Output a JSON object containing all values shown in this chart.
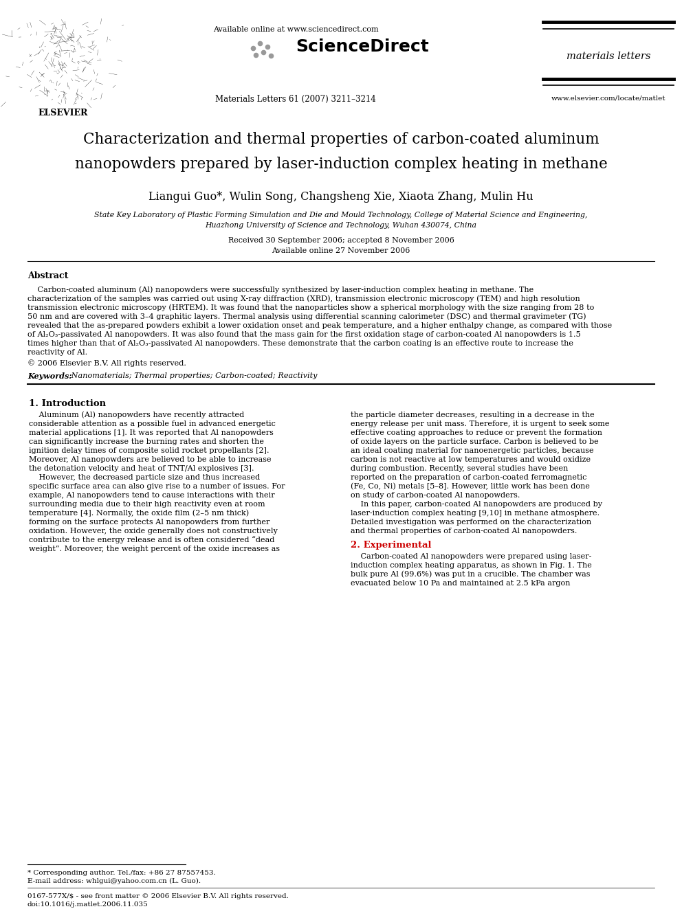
{
  "bg_color": "#ffffff",
  "header": {
    "available_online": "Available online at www.sciencedirect.com",
    "journal_name": "materials letters",
    "journal_ref": "Materials Letters 61 (2007) 3211–3214",
    "website": "www.elsevier.com/locate/matlet"
  },
  "title_line1": "Characterization and thermal properties of carbon-coated aluminum",
  "title_line2": "nanopowders prepared by laser-induction complex heating in methane",
  "authors": "Liangui Guo*, Wulin Song, Changsheng Xie, Xiaota Zhang, Mulin Hu",
  "affiliation_line1": "State Key Laboratory of Plastic Forming Simulation and Die and Mould Technology, College of Material Science and Engineering,",
  "affiliation_line2": "Huazhong University of Science and Technology, Wuhan 430074, China",
  "received": "Received 30 September 2006; accepted 8 November 2006",
  "available": "Available online 27 November 2006",
  "abstract_title": "Abstract",
  "abstract_lines": [
    "    Carbon-coated aluminum (Al) nanopowders were successfully synthesized by laser-induction complex heating in methane. The",
    "characterization of the samples was carried out using X-ray diffraction (XRD), transmission electronic microscopy (TEM) and high resolution",
    "transmission electronic microscopy (HRTEM). It was found that the nanoparticles show a spherical morphology with the size ranging from 28 to",
    "50 nm and are covered with 3–4 graphitic layers. Thermal analysis using differential scanning calorimeter (DSC) and thermal gravimeter (TG)",
    "revealed that the as-prepared powders exhibit a lower oxidation onset and peak temperature, and a higher enthalpy change, as compared with those",
    "of Al₂O₃-passivated Al nanopowders. It was also found that the mass gain for the first oxidation stage of carbon-coated Al nanopowders is 1.5",
    "times higher than that of Al₂O₃-passivated Al nanopowders. These demonstrate that the carbon coating is an effective route to increase the",
    "reactivity of Al."
  ],
  "copyright": "© 2006 Elsevier B.V. All rights reserved.",
  "keywords_label": "Keywords:",
  "keywords": "Nanomaterials; Thermal properties; Carbon-coated; Reactivity",
  "section1_title": "1. Introduction",
  "col1_lines": [
    "    Aluminum (Al) nanopowders have recently attracted",
    "considerable attention as a possible fuel in advanced energetic",
    "material applications [1]. It was reported that Al nanopowders",
    "can significantly increase the burning rates and shorten the",
    "ignition delay times of composite solid rocket propellants [2].",
    "Moreover, Al nanopowders are believed to be able to increase",
    "the detonation velocity and heat of TNT/Al explosives [3].",
    "    However, the decreased particle size and thus increased",
    "specific surface area can also give rise to a number of issues. For",
    "example, Al nanopowders tend to cause interactions with their",
    "surrounding media due to their high reactivity even at room",
    "temperature [4]. Normally, the oxide film (2–5 nm thick)",
    "forming on the surface protects Al nanopowders from further",
    "oxidation. However, the oxide generally does not constructively",
    "contribute to the energy release and is often considered “dead",
    "weight”. Moreover, the weight percent of the oxide increases as"
  ],
  "col2_lines_intro": [
    "the particle diameter decreases, resulting in a decrease in the",
    "energy release per unit mass. Therefore, it is urgent to seek some",
    "effective coating approaches to reduce or prevent the formation",
    "of oxide layers on the particle surface. Carbon is believed to be",
    "an ideal coating material for nanoenergetic particles, because",
    "carbon is not reactive at low temperatures and would oxidize",
    "during combustion. Recently, several studies have been",
    "reported on the preparation of carbon-coated ferromagnetic",
    "(Fe, Co, Ni) metals [5–8]. However, little work has been done",
    "on study of carbon-coated Al nanopowders.",
    "    In this paper, carbon-coated Al nanopowders are produced by",
    "laser-induction complex heating [9,10] in methane atmosphere.",
    "Detailed investigation was performed on the characterization",
    "and thermal properties of carbon-coated Al nanopowders."
  ],
  "section2_title": "2. Experimental",
  "col2_lines_exp": [
    "    Carbon-coated Al nanopowders were prepared using laser-",
    "induction complex heating apparatus, as shown in Fig. 1. The",
    "bulk pure Al (99.6%) was put in a crucible. The chamber was",
    "evacuated below 10 Pa and maintained at 2.5 kPa argon"
  ],
  "footnote_star": "* Corresponding author. Tel./fax: +86 27 87557453.",
  "footnote_email": "E-mail address: whlgui@yahoo.com.cn (L. Guo).",
  "footnote_issn": "0167-577X/$ - see front matter © 2006 Elsevier B.V. All rights reserved.",
  "footnote_doi": "doi:10.1016/j.matlet.2006.11.035"
}
